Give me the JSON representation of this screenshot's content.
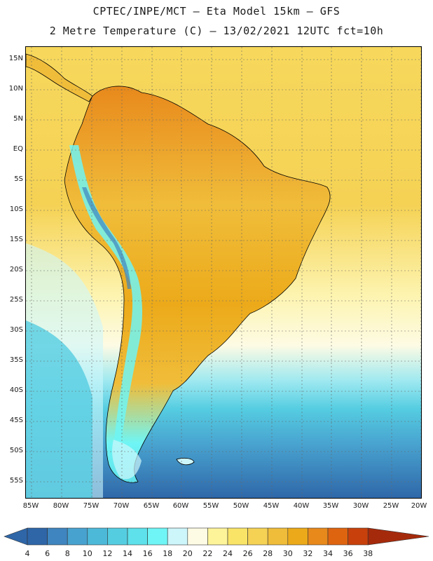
{
  "header": {
    "line1": "CPTEC/INPE/MCT –  Eta Model 15km – GFS",
    "line2": "2 Metre Temperature (C) – 13/02/2021 12UTC fct=10h"
  },
  "axes": {
    "lat_labels": [
      "15N",
      "10N",
      "5N",
      "EQ",
      "5S",
      "10S",
      "15S",
      "20S",
      "25S",
      "30S",
      "35S",
      "40S",
      "45S",
      "50S",
      "55S"
    ],
    "lon_labels": [
      "85W",
      "80W",
      "75W",
      "70W",
      "65W",
      "60W",
      "55W",
      "50W",
      "45W",
      "40W",
      "35W",
      "30W",
      "25W",
      "20W"
    ]
  },
  "colorbar": {
    "units": "°C",
    "ticks": [
      "4",
      "6",
      "8",
      "10",
      "12",
      "14",
      "16",
      "18",
      "20",
      "22",
      "24",
      "26",
      "28",
      "30",
      "32",
      "34",
      "36",
      "38"
    ],
    "colors": [
      "#2e66a8",
      "#3f85bf",
      "#48a2cf",
      "#4db9d9",
      "#55cde1",
      "#5ee1ea",
      "#6ff5f5",
      "#cdf6fb",
      "#fdfbe4",
      "#fdf49a",
      "#f9e467",
      "#f5d254",
      "#f0bd3a",
      "#ecaa1a",
      "#e8891c",
      "#df6410",
      "#c8410c",
      "#a52a0c"
    ]
  },
  "map": {
    "ocean_north_color": "#f5d254",
    "ocean_mid_color": "#fdfbe4",
    "ocean_south_color": "#4db9d9",
    "land_warm_color": "#f0bd3a",
    "andes_color": "#6ff5f5"
  }
}
